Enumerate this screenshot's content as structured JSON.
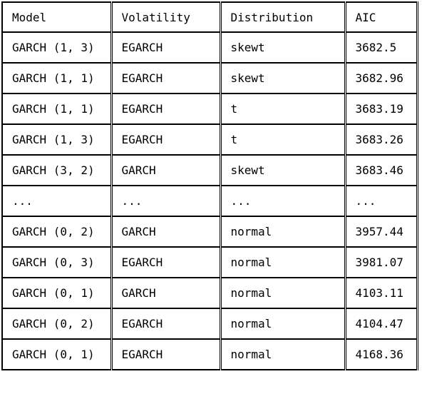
{
  "table": {
    "headers": [
      "Model",
      "Volatility",
      "Distribution",
      "AIC"
    ],
    "rows": [
      [
        "GARCH (1, 3)",
        "EGARCH",
        "skewt",
        "3682.5"
      ],
      [
        "GARCH (1, 1)",
        "EGARCH",
        "skewt",
        "3682.96"
      ],
      [
        "GARCH (1, 1)",
        "EGARCH",
        "t",
        "3683.19"
      ],
      [
        "GARCH (1, 3)",
        "EGARCH",
        "t",
        "3683.26"
      ],
      [
        "GARCH (3, 2)",
        "GARCH",
        "skewt",
        "3683.46"
      ],
      [
        "...",
        "...",
        "...",
        "..."
      ],
      [
        "GARCH (0, 2)",
        "GARCH",
        "normal",
        "3957.44"
      ],
      [
        "GARCH (0, 3)",
        "EGARCH",
        "normal",
        "3981.07"
      ],
      [
        "GARCH (0, 1)",
        "GARCH",
        "normal",
        "4103.11"
      ],
      [
        "GARCH (0, 2)",
        "EGARCH",
        "normal",
        "4104.47"
      ],
      [
        "GARCH (0, 1)",
        "EGARCH",
        "normal",
        "4168.36"
      ]
    ]
  }
}
